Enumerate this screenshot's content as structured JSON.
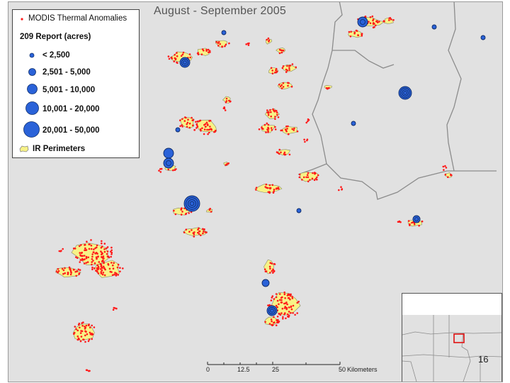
{
  "map": {
    "title": "August - September 2005",
    "page_number": "16"
  },
  "legend": {
    "thermal_label": "MODIS Thermal Anomalies",
    "report_heading": "209 Report (acres)",
    "size_classes": [
      "< 2,500",
      "2,501 - 5,000",
      "5,001 - 10,000",
      "10,001 - 20,000",
      "20,001 - 50,000"
    ],
    "perimeter_label": "IR Perimeters"
  },
  "scale_bar": {
    "ticks": [
      "0",
      "12.5",
      "25",
      "50"
    ],
    "unit": "Kilometers"
  },
  "colors": {
    "background": "#e1e1e1",
    "boundary": "#8c8c8c",
    "perimeter_fill": "#f7f287",
    "anomaly_dot": "#ff1a1a",
    "report_circle": "#2a62d8",
    "inset_highlight": "#e01010"
  }
}
